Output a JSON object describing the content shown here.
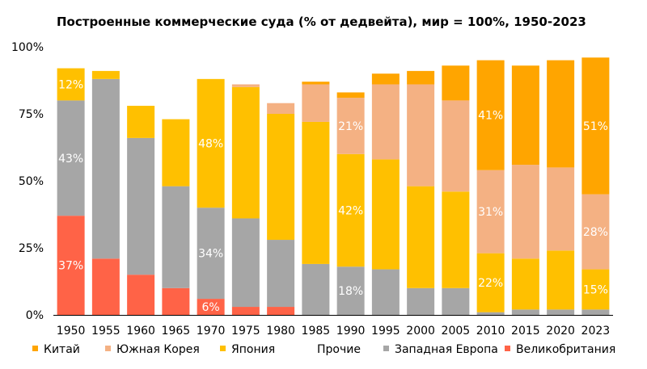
{
  "chart_data": {
    "type": "bar",
    "stacked": true,
    "title": "Построенные коммерческие суда (% от дедвейта), мир = 100%, 1950-2023",
    "xlabel": "",
    "ylabel": "",
    "ylim": [
      0,
      100
    ],
    "yticks": [
      "0%",
      "25%",
      "50%",
      "75%",
      "100%"
    ],
    "categories": [
      "1950",
      "1955",
      "1960",
      "1965",
      "1970",
      "1975",
      "1980",
      "1985",
      "1990",
      "1995",
      "2000",
      "2005",
      "2010",
      "2015",
      "2020",
      "2023"
    ],
    "series": [
      {
        "name": "Великобритания",
        "color": "#ff6347",
        "values": [
          37,
          21,
          15,
          10,
          6,
          3,
          3,
          0,
          0,
          0,
          0,
          0,
          0,
          0,
          0,
          0
        ]
      },
      {
        "name": "Западная Европа",
        "color": "#a6a6a6",
        "values": [
          43,
          67,
          51,
          38,
          34,
          33,
          25,
          19,
          18,
          17,
          10,
          10,
          1,
          2,
          2,
          2
        ]
      },
      {
        "name": "Прочие",
        "color": "#ffffff",
        "values": [
          0,
          0,
          0,
          0,
          0,
          0,
          0,
          0,
          0,
          0,
          0,
          0,
          0,
          0,
          0,
          0
        ]
      },
      {
        "name": "Япония",
        "color": "#ffc000",
        "values": [
          12,
          3,
          12,
          25,
          48,
          49,
          47,
          53,
          42,
          41,
          38,
          36,
          22,
          19,
          22,
          15
        ]
      },
      {
        "name": "Южная Корея",
        "color": "#f4b183",
        "values": [
          0,
          0,
          0,
          0,
          0,
          1,
          4,
          14,
          21,
          28,
          38,
          34,
          31,
          35,
          31,
          28
        ]
      },
      {
        "name": "Китай",
        "color": "#ffa500",
        "values": [
          0,
          0,
          0,
          0,
          0,
          0,
          0,
          1,
          2,
          4,
          5,
          13,
          41,
          37,
          40,
          51
        ]
      }
    ],
    "segment_labels": [
      {
        "series": "Великобритания",
        "category": "1950",
        "text": "37%"
      },
      {
        "series": "Западная Европа",
        "category": "1950",
        "text": "43%"
      },
      {
        "series": "Япония",
        "category": "1950",
        "text": "12%"
      },
      {
        "series": "Великобритания",
        "category": "1970",
        "text": "6%"
      },
      {
        "series": "Западная Европа",
        "category": "1970",
        "text": "34%"
      },
      {
        "series": "Япония",
        "category": "1970",
        "text": "48%"
      },
      {
        "series": "Западная Европа",
        "category": "1990",
        "text": "18%"
      },
      {
        "series": "Япония",
        "category": "1990",
        "text": "42%"
      },
      {
        "series": "Южная Корея",
        "category": "1990",
        "text": "21%"
      },
      {
        "series": "Япония",
        "category": "2010",
        "text": "22%"
      },
      {
        "series": "Южная Корея",
        "category": "2010",
        "text": "31%"
      },
      {
        "series": "Китай",
        "category": "2010",
        "text": "41%"
      },
      {
        "series": "Япония",
        "category": "2023",
        "text": "15%"
      },
      {
        "series": "Южная Корея",
        "category": "2023",
        "text": "28%"
      },
      {
        "series": "Китай",
        "category": "2023",
        "text": "51%"
      }
    ],
    "legend": {
      "position": "bottom",
      "order": [
        "Китай",
        "Южная Корея",
        "Япония",
        "Прочие",
        "Западная Европа",
        "Великобритания"
      ]
    },
    "grid": false
  }
}
